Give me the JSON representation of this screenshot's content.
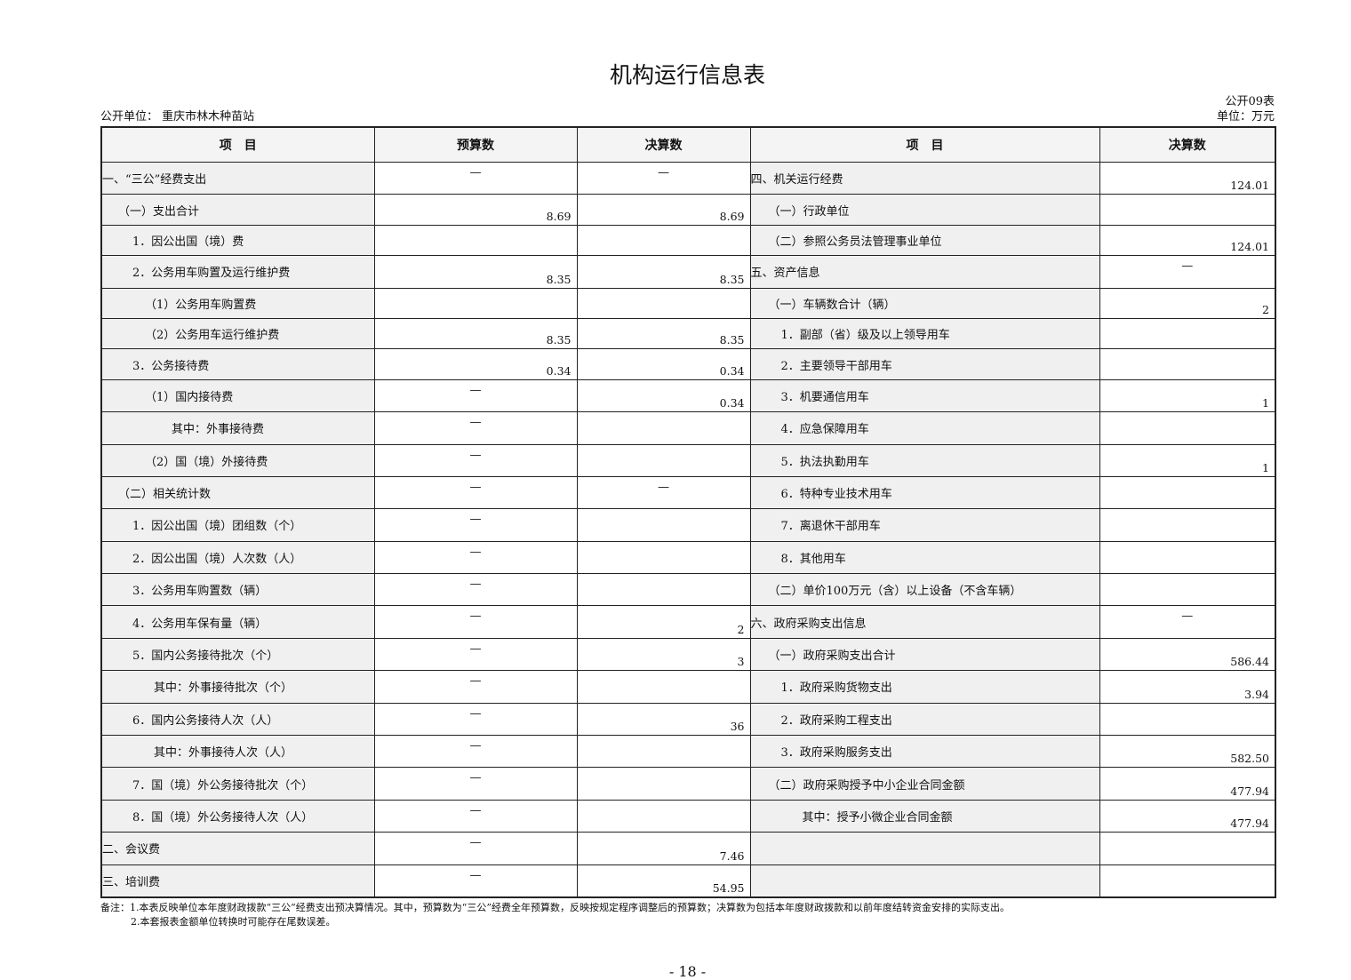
{
  "title": "机构运行信息表",
  "form_no": "公开09表",
  "unit_label": "公开单位：  重庆市林木种苗站",
  "unit_right": "单位：万元",
  "headers": [
    "项　目",
    "预算数",
    "决算数",
    "项　目",
    "决算数"
  ],
  "rows": [
    [
      "一、“三公”经费支出",
      "—",
      "—",
      "四、机关运行经费",
      "124.01"
    ],
    [
      "（一）支出合计",
      "8.69",
      "8.69",
      "（一）行政单位",
      ""
    ],
    [
      "1．因公出国（境）费",
      "",
      "",
      "（二）参照公务员法管理事业单位",
      "124.01"
    ],
    [
      "2．公务用车购置及运行维护费",
      "8.35",
      "8.35",
      "五、资产信息",
      "—"
    ],
    [
      "（1）公务用车购置费",
      "",
      "",
      "（一）车辆数合计（辆）",
      "2"
    ],
    [
      "（2）公务用车运行维护费",
      "8.35",
      "8.35",
      "1．副部（省）级及以上领导用车",
      ""
    ],
    [
      "3．公务接待费",
      "0.34",
      "0.34",
      "2．主要领导干部用车",
      ""
    ],
    [
      "（1）国内接待费",
      "—",
      "0.34",
      "3．机要通信用车",
      "1"
    ],
    [
      "其中：外事接待费",
      "—",
      "",
      "4．应急保障用车",
      ""
    ],
    [
      "（2）国（境）外接待费",
      "—",
      "",
      "5．执法执勤用车",
      "1"
    ],
    [
      "（二）相关统计数",
      "—",
      "—",
      "6．特种专业技术用车",
      ""
    ],
    [
      "1．因公出国（境）团组数（个）",
      "—",
      "",
      "7．离退休干部用车",
      ""
    ],
    [
      "2．因公出国（境）人次数（人）",
      "—",
      "",
      "8．其他用车",
      ""
    ],
    [
      "3．公务用车购置数（辆）",
      "—",
      "",
      "（二）单价100万元（含）以上设备（不含车辆）",
      ""
    ],
    [
      "4．公务用车保有量（辆）",
      "—",
      "2",
      "六、政府采购支出信息",
      "—"
    ],
    [
      "5．国内公务接待批次（个）",
      "—",
      "3",
      "（一）政府采购支出合计",
      "586.44"
    ],
    [
      "其中：外事接待批次（个）",
      "—",
      "",
      "1．政府采购货物支出",
      "3.94"
    ],
    [
      "6．国内公务接待人次（人）",
      "—",
      "36",
      "2．政府采购工程支出",
      ""
    ],
    [
      "其中：外事接待人次（人）",
      "—",
      "",
      "3．政府采购服务支出",
      "582.50"
    ],
    [
      "7．国（境）外公务接待批次（个）",
      "—",
      "",
      "（二）政府采购授予中小企业合同金额",
      "477.94"
    ],
    [
      "8．国（境）外公务接待人次（人）",
      "—",
      "",
      "其中：授予小微企业合同金额",
      "477.94"
    ],
    [
      "二、会议费",
      "—",
      "7.46",
      "",
      ""
    ],
    [
      "三、培训费",
      "—",
      "54.95",
      "",
      ""
    ]
  ],
  "notes": [
    "备注：1.本表反映单位本年度财政拨款“三公”经费支出预决算情况。其中，预算数为“三公”经费全年预算数，反映按规定程序调整后的预算数；决算数为包括本年度财政拨款和以前年度结转资金安排的实际支出。",
    "2.本套报表金额单位转换时可能存在尾数误差。"
  ],
  "page_number": "- 18 -"
}
